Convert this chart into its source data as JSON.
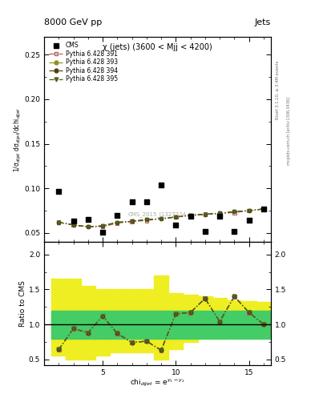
{
  "title_top": "8000 GeV pp",
  "title_right": "Jets",
  "subplot_title": "χ (jets) (3600 < Mjj < 4200)",
  "watermark": "CMS_2015_I1327224",
  "right_label_top": "Rivet 3.1.10, ≥ 3.4M events",
  "right_label_bot": "mcplots.cern.ch [arXiv:1306.3436]",
  "ylabel_main": "1/σ$_{dijet}$ dσ$_{dijet}$/dchi$_{dijet}$",
  "ylabel_ratio": "Ratio to CMS",
  "xlabel": "chi$_{dijet}$ = e$^{y_1 - y_2}$",
  "ylim_main": [
    0.04,
    0.27
  ],
  "ylim_ratio": [
    0.42,
    2.18
  ],
  "yticks_main": [
    0.05,
    0.1,
    0.15,
    0.2,
    0.25
  ],
  "yticks_ratio": [
    0.5,
    1.0,
    1.5,
    2.0
  ],
  "xlim": [
    1,
    16.5
  ],
  "xticks": [
    5,
    10,
    15
  ],
  "cms_x": [
    2,
    3,
    4,
    5,
    6,
    7,
    8,
    9,
    10,
    11,
    12,
    13,
    14,
    15,
    16
  ],
  "cms_y": [
    0.097,
    0.063,
    0.065,
    0.051,
    0.07,
    0.085,
    0.085,
    0.104,
    0.059,
    0.069,
    0.052,
    0.069,
    0.052,
    0.064,
    0.077
  ],
  "py391_x": [
    2,
    3,
    4,
    5,
    6,
    7,
    8,
    9,
    10,
    11,
    12,
    13,
    14,
    15,
    16
  ],
  "py391_y": [
    0.062,
    0.059,
    0.057,
    0.057,
    0.061,
    0.063,
    0.064,
    0.066,
    0.068,
    0.069,
    0.071,
    0.072,
    0.073,
    0.075,
    0.077
  ],
  "py391_color": "#b06060",
  "py391_marker": "s",
  "py393_x": [
    2,
    3,
    4,
    5,
    6,
    7,
    8,
    9,
    10,
    11,
    12,
    13,
    14,
    15,
    16
  ],
  "py393_y": [
    0.062,
    0.059,
    0.057,
    0.058,
    0.062,
    0.063,
    0.065,
    0.066,
    0.068,
    0.07,
    0.071,
    0.072,
    0.074,
    0.075,
    0.077
  ],
  "py393_color": "#909020",
  "py393_marker": "o",
  "py394_x": [
    2,
    3,
    4,
    5,
    6,
    7,
    8,
    9,
    10,
    11,
    12,
    13,
    14,
    15,
    16
  ],
  "py394_y": [
    0.062,
    0.059,
    0.057,
    0.058,
    0.062,
    0.063,
    0.065,
    0.066,
    0.068,
    0.07,
    0.071,
    0.072,
    0.074,
    0.075,
    0.077
  ],
  "py394_color": "#504010",
  "py394_marker": "o",
  "py395_x": [
    2,
    3,
    4,
    5,
    6,
    7,
    8,
    9,
    10,
    11,
    12,
    13,
    14,
    15,
    16
  ],
  "py395_y": [
    0.062,
    0.059,
    0.057,
    0.058,
    0.062,
    0.063,
    0.065,
    0.066,
    0.068,
    0.07,
    0.071,
    0.072,
    0.074,
    0.075,
    0.077
  ],
  "py395_color": "#506020",
  "py395_marker": "v",
  "ratio_x": [
    2,
    3,
    4,
    5,
    6,
    7,
    8,
    9,
    10,
    11,
    12,
    13,
    14,
    15,
    16
  ],
  "ratio391_y": [
    0.64,
    0.94,
    0.88,
    1.12,
    0.87,
    0.74,
    0.76,
    0.63,
    1.15,
    1.17,
    1.37,
    1.04,
    1.4,
    1.17,
    1.0
  ],
  "ratio393_y": [
    0.64,
    0.94,
    0.88,
    1.12,
    0.87,
    0.74,
    0.76,
    0.63,
    1.15,
    1.17,
    1.37,
    1.04,
    1.4,
    1.17,
    1.0
  ],
  "ratio394_y": [
    0.64,
    0.94,
    0.88,
    1.12,
    0.87,
    0.74,
    0.76,
    0.63,
    1.15,
    1.17,
    1.37,
    1.04,
    1.4,
    1.17,
    1.0
  ],
  "ratio395_y": [
    0.64,
    0.94,
    0.88,
    1.12,
    0.87,
    0.74,
    0.76,
    0.63,
    1.15,
    1.17,
    1.37,
    1.04,
    1.4,
    1.17,
    1.0
  ],
  "band_edges": [
    1.5,
    2.5,
    3.5,
    4.5,
    5.5,
    6.5,
    7.5,
    8.5,
    9.5,
    10.5,
    11.5,
    12.5,
    13.5,
    14.5,
    15.5,
    16.5
  ],
  "band_green_lo": [
    0.8,
    0.8,
    0.8,
    0.8,
    0.8,
    0.8,
    0.8,
    0.8,
    0.8,
    0.8,
    0.8,
    0.8,
    0.8,
    0.8,
    0.8
  ],
  "band_green_hi": [
    1.2,
    1.2,
    1.2,
    1.2,
    1.2,
    1.2,
    1.2,
    1.2,
    1.2,
    1.2,
    1.2,
    1.2,
    1.2,
    1.2,
    1.2
  ],
  "band_yellow_lo": [
    0.55,
    0.5,
    0.5,
    0.55,
    0.6,
    0.6,
    0.6,
    0.5,
    0.65,
    0.75,
    0.8,
    0.8,
    0.82,
    0.85,
    0.85
  ],
  "band_yellow_hi": [
    1.65,
    1.65,
    1.55,
    1.5,
    1.5,
    1.5,
    1.5,
    1.7,
    1.45,
    1.42,
    1.4,
    1.38,
    1.35,
    1.33,
    1.32
  ],
  "green_color": "#44cc66",
  "yellow_color": "#eeee22"
}
